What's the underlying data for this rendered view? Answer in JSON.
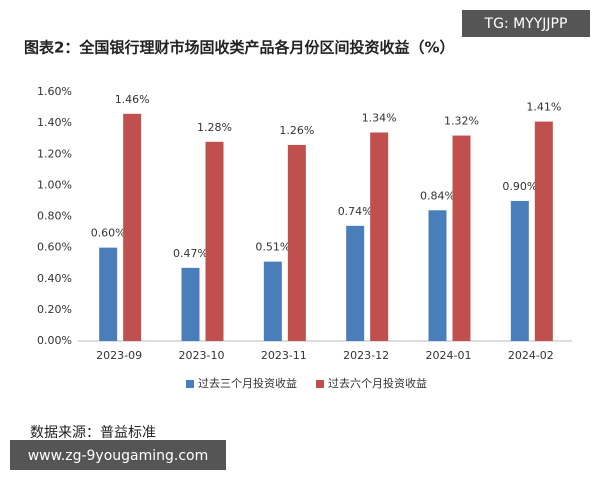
{
  "chart_data": {
    "type": "bar",
    "title": "图表2：全国银行理财市场固收类产品各月份区间投资收益（%）",
    "source": "数据来源：普益标准",
    "watermarks": [
      "TG: MYYJJPP",
      "www.zg-9yougaming.com"
    ],
    "categories": [
      "2023-09",
      "2023-10",
      "2023-11",
      "2023-12",
      "2024-01",
      "2024-02"
    ],
    "series": [
      {
        "name": "过去三个月投资收益",
        "color": "#4a7ebb",
        "values": [
          0.6,
          0.47,
          0.51,
          0.74,
          0.84,
          0.9
        ],
        "value_labels": [
          "0.60%",
          "0.47%",
          "0.51%",
          "0.74%",
          "0.84%",
          "0.90%"
        ]
      },
      {
        "name": "过去六个月投资收益",
        "color": "#c0504d",
        "values": [
          1.46,
          1.28,
          1.26,
          1.34,
          1.32,
          1.41
        ],
        "value_labels": [
          "1.46%",
          "1.28%",
          "1.26%",
          "1.34%",
          "1.32%",
          "1.41%"
        ]
      }
    ],
    "ylim": [
      0,
      1.6
    ],
    "yticks": [
      {
        "value": 0,
        "label": "0.00%"
      },
      {
        "value": 0.2,
        "label": "0.20%"
      },
      {
        "value": 0.4,
        "label": "0.40%"
      },
      {
        "value": 0.6,
        "label": "0.60%"
      },
      {
        "value": 0.8,
        "label": "0.80%"
      },
      {
        "value": 1.0,
        "label": "1.00%"
      },
      {
        "value": 1.2,
        "label": "1.20%"
      },
      {
        "value": 1.4,
        "label": "1.40%"
      },
      {
        "value": 1.6,
        "label": "1.60%"
      }
    ],
    "grid": false,
    "legend": "bottom"
  }
}
